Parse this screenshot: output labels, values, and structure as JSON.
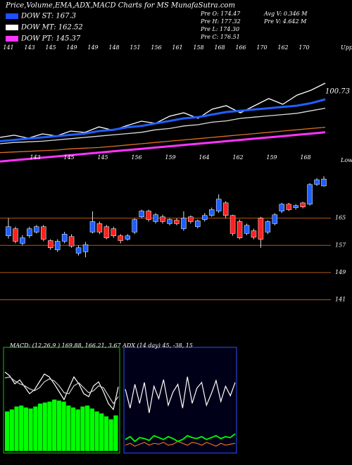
{
  "header": {
    "title": "Price,Volume,EMA,ADX,MACD Charts for MS MunafaSutra.com",
    "legend": [
      {
        "label": "DOW ST: 167.3",
        "color": "#1f4fff"
      },
      {
        "label": "DOW MT: 162.52",
        "color": "#ffffff"
      },
      {
        "label": "DOW PT: 145.37",
        "color": "#ff33ff"
      }
    ]
  },
  "info": [
    "Pre  O: 174.47",
    "Pre  H: 177.32",
    "Pre  L: 174.30",
    "Pre  C: 176.51",
    "Avg  V: 0.346  M",
    "Pre  V: 4.642  M"
  ],
  "chart_data": [
    {
      "type": "line",
      "ylim": [
        100,
        200
      ],
      "side_label": "Upper",
      "end_label": "100.73",
      "annotations": [
        "141",
        "143",
        "145",
        "149",
        "149",
        "148",
        "151",
        "156",
        "161",
        "158",
        "168",
        "166",
        "170",
        "162",
        "170"
      ],
      "series": [
        {
          "color": "#ffffff",
          "values": [
            125.0,
            126.7,
            124.4,
            127.8,
            126.1,
            130.0,
            128.9,
            133.3,
            130.6,
            134.4,
            137.8,
            136.1,
            141.7,
            144.4,
            140.0,
            147.2,
            150.0,
            144.4,
            150.0,
            155.6,
            151.1,
            158.3,
            162.2,
            167.8
          ]
        },
        {
          "color": "#1f5fff",
          "values": [
            122,
            123,
            124,
            125,
            126,
            127,
            128,
            130,
            131,
            133,
            134,
            136,
            138,
            140,
            141,
            143,
            145,
            146,
            147,
            148,
            149,
            150,
            152,
            155
          ]
        },
        {
          "color": "#dddddd",
          "values": [
            120,
            121,
            121.5,
            122,
            123,
            124,
            125,
            126,
            127,
            128,
            129,
            131,
            132,
            134,
            135,
            137,
            138,
            140,
            141,
            142,
            143,
            144,
            146,
            148
          ]
        },
        {
          "color": "#e07020",
          "values": [
            113,
            113.5,
            114,
            114.5,
            115,
            116,
            116.5,
            117,
            118,
            119,
            120,
            121,
            122,
            123,
            124,
            125,
            126,
            127,
            128,
            129,
            130,
            131,
            132,
            133
          ]
        },
        {
          "color": "#ff33ff",
          "values": [
            106,
            107,
            108,
            109,
            110,
            111,
            112,
            113,
            114,
            115,
            116,
            117,
            118,
            119,
            120,
            121,
            122,
            123,
            124,
            125,
            126,
            127,
            128,
            129
          ]
        }
      ]
    },
    {
      "type": "candlestick",
      "ylim": [
        138,
        181.5
      ],
      "yticks": [
        141,
        149,
        157,
        165
      ],
      "up_color": "#1f5fff",
      "down_color": "#ff2020",
      "grid_color": "#b05a10",
      "side_label": "Lower",
      "annotations": [
        "143",
        "145",
        "145",
        "156",
        "159",
        "164",
        "162",
        "159",
        "168"
      ],
      "open": [
        159.8,
        161.9,
        157.6,
        159.8,
        160.9,
        162.5,
        158.4,
        155.7,
        158.2,
        159.6,
        154.7,
        155.1,
        160.9,
        163.4,
        162.5,
        161.9,
        159.8,
        158.8,
        160.9,
        165.4,
        167.1,
        164.0,
        165.4,
        163.4,
        164.4,
        161.9,
        165.4,
        162.5,
        164.6,
        165.8,
        167.1,
        169.5,
        165.8,
        164.0,
        160.5,
        161.3,
        165.0,
        160.9,
        163.4,
        167.1,
        169.1,
        168.1,
        169.5,
        169.1,
        174.9,
        174.47
      ],
      "high": [
        165.0,
        162.5,
        160.0,
        162.5,
        163.0,
        163.0,
        158.8,
        158.8,
        161.0,
        160.3,
        157.0,
        158.0,
        167.0,
        164.0,
        163.0,
        162.5,
        160.3,
        160.3,
        165.0,
        167.5,
        167.5,
        166.5,
        166.0,
        165.0,
        165.0,
        167.0,
        165.8,
        164.6,
        166.5,
        168.1,
        172.0,
        170.0,
        166.0,
        164.6,
        163.4,
        161.9,
        165.4,
        164.4,
        166.5,
        169.5,
        169.5,
        169.1,
        169.8,
        175.3,
        176.8,
        177.32
      ],
      "low": [
        159.0,
        157.6,
        157.0,
        159.2,
        160.5,
        158.2,
        155.7,
        155.1,
        157.6,
        156.3,
        154.0,
        153.5,
        160.5,
        160.3,
        158.8,
        159.2,
        157.6,
        158.4,
        160.3,
        165.0,
        164.0,
        163.4,
        163.4,
        162.9,
        162.9,
        161.3,
        163.4,
        162.0,
        164.0,
        165.4,
        166.5,
        165.0,
        159.8,
        158.8,
        160.0,
        158.8,
        156.3,
        160.3,
        162.9,
        166.5,
        167.1,
        167.5,
        167.9,
        168.7,
        174.5,
        174.3
      ],
      "close": [
        162.5,
        158.2,
        159.2,
        161.9,
        162.5,
        158.8,
        156.3,
        158.2,
        160.3,
        156.8,
        156.3,
        157.2,
        164.0,
        160.9,
        159.2,
        159.8,
        158.4,
        159.8,
        164.6,
        167.1,
        164.6,
        166.0,
        164.0,
        164.6,
        163.4,
        165.0,
        164.0,
        164.2,
        165.8,
        167.5,
        170.6,
        165.8,
        160.5,
        159.2,
        162.9,
        159.4,
        158.8,
        164.0,
        166.0,
        169.1,
        167.5,
        168.7,
        168.3,
        174.9,
        176.3,
        176.51
      ]
    },
    {
      "type": "macd",
      "title": "MACD:            (12,26,9 ) 169.88, 166.21, 3.67  ADX              (14  day) 45, -38, 15",
      "ylim": [
        0,
        10
      ],
      "histogram": {
        "color": "#00ff00",
        "values": [
          4,
          4.2,
          4.5,
          4.6,
          4.4,
          4.3,
          4.5,
          4.8,
          4.9,
          5,
          5.2,
          5.1,
          5,
          4.6,
          4.4,
          4.2,
          4.5,
          4.6,
          4.3,
          4,
          3.8,
          3.5,
          3.2,
          3.6
        ]
      },
      "series": [
        {
          "color": "#ffffff",
          "values": [
            8,
            7.6,
            6.8,
            7.2,
            6.5,
            5.8,
            6.2,
            7,
            7.8,
            7.5,
            6.8,
            6,
            5.2,
            6.4,
            7.5,
            6.8,
            5.8,
            5.5,
            6.6,
            7,
            6,
            4.8,
            4.2,
            6.5
          ]
        },
        {
          "color": "#cccccc",
          "values": [
            7.4,
            7.5,
            7.1,
            6.8,
            6.6,
            6.3,
            6.1,
            6.4,
            7,
            7.3,
            7.1,
            6.6,
            5.9,
            5.8,
            6.6,
            6.9,
            6.4,
            5.9,
            6.1,
            6.6,
            6.4,
            5.6,
            4.8,
            5.5
          ]
        }
      ]
    },
    {
      "type": "adx",
      "ylim": [
        0,
        100
      ],
      "series": [
        {
          "color": "#ffffff",
          "values": [
            65,
            45,
            70,
            50,
            72,
            40,
            68,
            55,
            75,
            48,
            62,
            70,
            45,
            78,
            50,
            66,
            72,
            48,
            60,
            74,
            52,
            68,
            58,
            72
          ]
        },
        {
          "color": "#00ff00",
          "values": [
            12,
            15,
            10,
            14,
            13,
            11,
            16,
            14,
            12,
            15,
            13,
            10,
            12,
            16,
            14,
            13,
            15,
            12,
            14,
            16,
            13,
            15,
            14,
            18
          ]
        },
        {
          "color": "#e07020",
          "values": [
            6,
            8,
            5,
            7,
            9,
            6,
            8,
            7,
            9,
            6,
            7,
            10,
            8,
            6,
            9,
            8,
            6,
            9,
            7,
            5,
            8,
            6,
            7,
            8
          ]
        }
      ]
    }
  ]
}
